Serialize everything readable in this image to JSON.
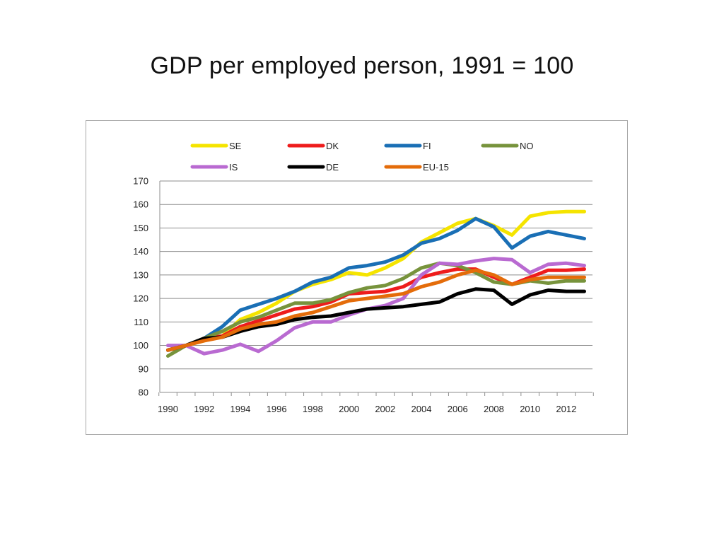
{
  "title": "GDP per employed person, 1991 = 100",
  "chart_data": {
    "type": "line",
    "x": [
      1990,
      1991,
      1992,
      1993,
      1994,
      1995,
      1996,
      1997,
      1998,
      1999,
      2000,
      2001,
      2002,
      2003,
      2004,
      2005,
      2006,
      2007,
      2008,
      2009,
      2010,
      2011,
      2012,
      2013
    ],
    "xticks": [
      "1990",
      "1992",
      "1994",
      "1996",
      "1998",
      "2000",
      "2002",
      "2004",
      "2006",
      "2008",
      "2010",
      "2012"
    ],
    "ylim": [
      80,
      170
    ],
    "yticks": [
      "80",
      "90",
      "100",
      "110",
      "120",
      "130",
      "140",
      "150",
      "160",
      "170"
    ],
    "grid": "horizontal",
    "legend_position": "top",
    "series": [
      {
        "name": "SE",
        "color": "#f5e400",
        "values": [
          98,
          100,
          102,
          104,
          111,
          114,
          118,
          123,
          126,
          128,
          131,
          130,
          133,
          137,
          144,
          148,
          152,
          154,
          151,
          147,
          155,
          156.5,
          157,
          157
        ]
      },
      {
        "name": "DK",
        "color": "#ee1c1c",
        "values": [
          98,
          100,
          103,
          104,
          108,
          110.5,
          113,
          115.5,
          116.5,
          118.5,
          122,
          122.5,
          123,
          125,
          129,
          131,
          132.5,
          132.5,
          129,
          126,
          129,
          132,
          132,
          132.5
        ]
      },
      {
        "name": "FI",
        "color": "#1a6fb5",
        "values": [
          98,
          100,
          103,
          108,
          115,
          117.5,
          120,
          123,
          127,
          129,
          133,
          134,
          135.5,
          138.5,
          143.5,
          145.5,
          149,
          154,
          150.5,
          141.5,
          146.5,
          148.5,
          147,
          145.5
        ]
      },
      {
        "name": "NO",
        "color": "#77933c",
        "values": [
          95.5,
          100,
          103,
          106,
          110,
          112,
          115,
          118,
          118,
          119.5,
          122.5,
          124.5,
          125.5,
          128.5,
          133,
          135,
          134,
          131,
          127,
          126,
          127.5,
          126.5,
          127.5,
          127.5
        ]
      },
      {
        "name": "IS",
        "color": "#b96ad1",
        "values": [
          100,
          100,
          96.5,
          98,
          100.5,
          97.5,
          102,
          107.5,
          110,
          110,
          113,
          115.5,
          117,
          120,
          130,
          135,
          134.5,
          136,
          137,
          136.5,
          131,
          134.5,
          135,
          134
        ]
      },
      {
        "name": "DE",
        "color": "#000000",
        "values": [
          98,
          100,
          103,
          103.5,
          106,
          108,
          109,
          111,
          112,
          112.5,
          114,
          115.5,
          116,
          116.5,
          117.5,
          118.5,
          122,
          124,
          123.5,
          117.5,
          121.5,
          123.5,
          123,
          123
        ]
      },
      {
        "name": "EU-15",
        "color": "#e46c0a",
        "values": [
          98,
          100,
          102,
          103.5,
          107,
          109,
          110,
          112.5,
          114,
          116.5,
          119,
          120,
          121,
          122,
          125,
          127,
          130,
          132,
          130,
          126,
          128,
          129,
          129,
          129
        ]
      }
    ]
  }
}
